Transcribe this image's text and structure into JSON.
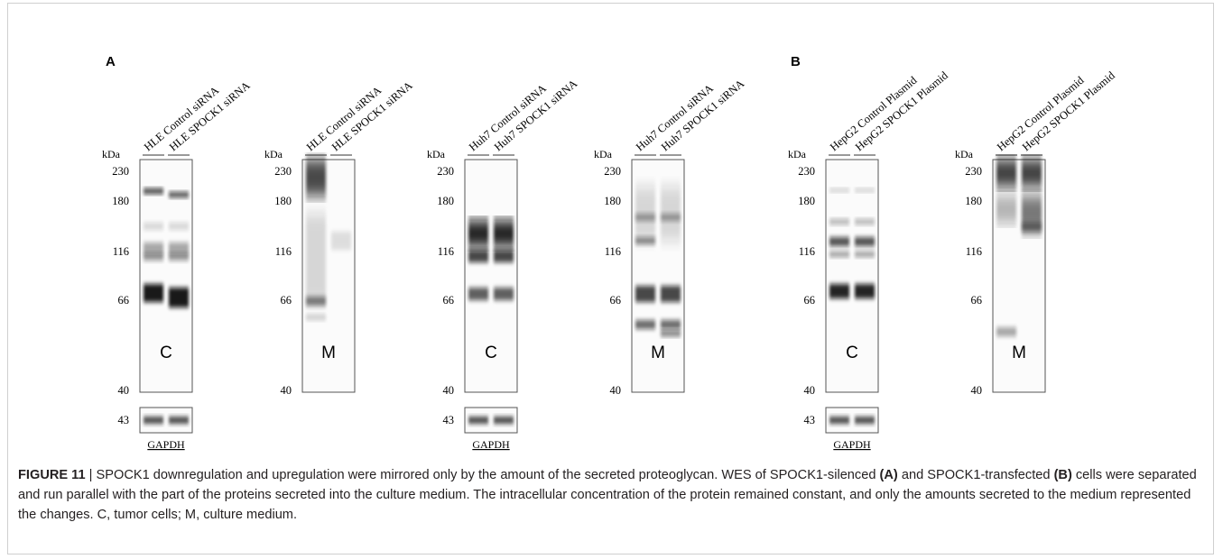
{
  "panels": [
    {
      "label": "A"
    },
    {
      "label": "B"
    }
  ],
  "blots": [
    {
      "lanes": [
        "HLE Control siRNA",
        "HLE SPOCK1 siRNA"
      ],
      "unit": "kDa",
      "markers": [
        230,
        180,
        116,
        66,
        40
      ],
      "fraction": "C",
      "loading": {
        "marker": 43,
        "name": "GAPDH"
      }
    },
    {
      "lanes": [
        "HLE Control siRNA",
        "HLE SPOCK1 siRNA"
      ],
      "unit": "kDa",
      "markers": [
        230,
        180,
        116,
        66,
        40
      ],
      "fraction": "M"
    },
    {
      "lanes": [
        "Huh7 Control siRNA",
        "Huh7 SPOCK1 siRNA"
      ],
      "unit": "kDa",
      "markers": [
        230,
        180,
        116,
        66,
        40
      ],
      "fraction": "C",
      "loading": {
        "marker": 43,
        "name": "GAPDH"
      }
    },
    {
      "lanes": [
        "Huh7 Control siRNA",
        "Huh7 SPOCK1 siRNA"
      ],
      "unit": "kDa",
      "markers": [
        230,
        180,
        116,
        66,
        40
      ],
      "fraction": "M"
    },
    {
      "lanes": [
        "HepG2 Control Plasmid",
        "HepG2 SPOCK1 Plasmid"
      ],
      "unit": "kDa",
      "markers": [
        230,
        180,
        116,
        66,
        40
      ],
      "fraction": "C",
      "loading": {
        "marker": 43,
        "name": "GAPDH"
      }
    },
    {
      "lanes": [
        "HepG2 Control Plasmid",
        "HepG2 SPOCK1 Plasmid"
      ],
      "unit": "kDa",
      "markers": [
        230,
        180,
        116,
        66,
        40
      ],
      "fraction": "M"
    }
  ],
  "caption": {
    "parts": [
      "FIGURE 11",
      " | SPOCK1 downregulation and upregulation were mirrored only by the amount of the secreted proteoglycan. WES of SPOCK1-silenced ",
      "(A)",
      " and SPOCK1-transfected ",
      "(B)",
      " cells were separated and run parallel with the part of the proteins secreted into the culture medium. The intracellular concentration of the protein remained constant, and only the amounts secreted to the medium represented the changes. C, tumor cells; M, culture medium."
    ]
  }
}
